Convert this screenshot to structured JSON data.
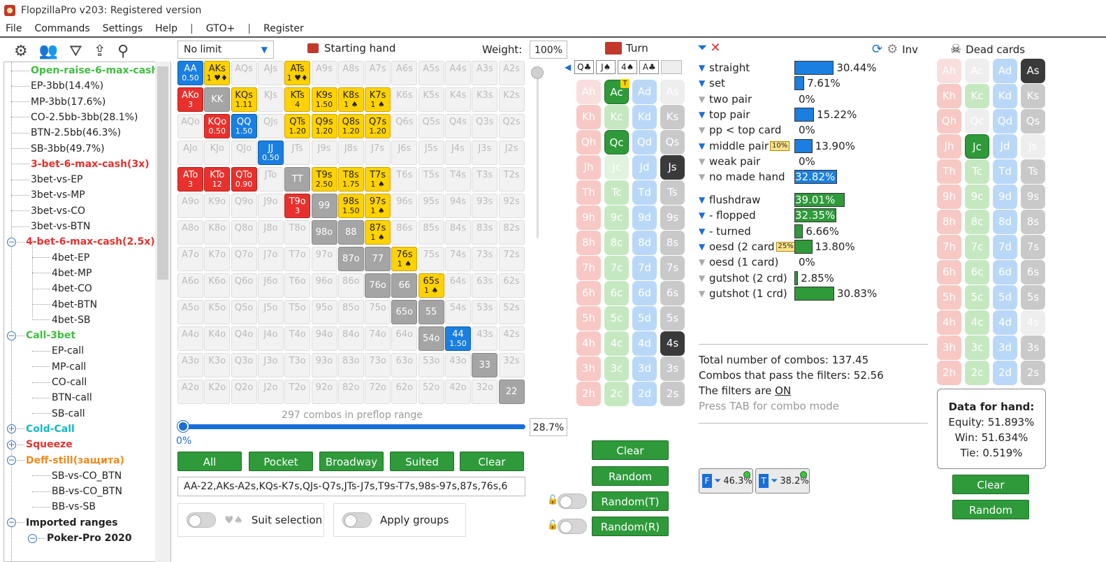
{
  "window": {
    "title": "FlopzillaPro v203: Registered version"
  },
  "menu": [
    "File",
    "Commands",
    "Settings",
    "Help",
    "|",
    "GTO+",
    "|",
    "Register"
  ],
  "tree": {
    "items": [
      {
        "label": "Open-raise-6-max-cash",
        "color": "#3fbf3f",
        "bold": true,
        "level": 1,
        "toggle": ""
      },
      {
        "label": "EP-3bb(14.4%)",
        "color": "#222",
        "bold": false,
        "level": 1,
        "toggle": ""
      },
      {
        "label": "MP-3bb(17.6%)",
        "color": "#222",
        "bold": false,
        "level": 1,
        "toggle": ""
      },
      {
        "label": "CO-2.5bb-3bb(28.1%)",
        "color": "#222",
        "bold": false,
        "level": 1,
        "toggle": ""
      },
      {
        "label": "BTN-2.5bb(46.3%)",
        "color": "#222",
        "bold": false,
        "level": 1,
        "toggle": ""
      },
      {
        "label": "SB-3bb(49.7%)",
        "color": "#222",
        "bold": false,
        "level": 1,
        "toggle": ""
      },
      {
        "label": "3-bet-6-max-cash(3x)",
        "color": "#e8312d",
        "bold": true,
        "level": 1,
        "toggle": ""
      },
      {
        "label": "3bet-vs-EP",
        "color": "#222",
        "bold": false,
        "level": 1,
        "toggle": ""
      },
      {
        "label": "3bet-vs-MP",
        "color": "#222",
        "bold": false,
        "level": 1,
        "toggle": ""
      },
      {
        "label": "3bet-vs-CO",
        "color": "#222",
        "bold": false,
        "level": 1,
        "toggle": ""
      },
      {
        "label": "3bet-vs-BTN",
        "color": "#222",
        "bold": false,
        "level": 1,
        "toggle": ""
      },
      {
        "label": "4-bet-6-max-cash(2.5x)",
        "color": "#e8312d",
        "bold": true,
        "level": 1,
        "toggle": "−"
      },
      {
        "label": "4bet-EP",
        "color": "#222",
        "bold": false,
        "level": 2,
        "toggle": ""
      },
      {
        "label": "4bet-MP",
        "color": "#222",
        "bold": false,
        "level": 2,
        "toggle": ""
      },
      {
        "label": "4bet-CO",
        "color": "#222",
        "bold": false,
        "level": 2,
        "toggle": ""
      },
      {
        "label": "4bet-BTN",
        "color": "#222",
        "bold": false,
        "level": 2,
        "toggle": ""
      },
      {
        "label": "4bet-SB",
        "color": "#222",
        "bold": false,
        "level": 2,
        "toggle": ""
      },
      {
        "label": "Call-3bet",
        "color": "#3fbf3f",
        "bold": true,
        "level": 1,
        "toggle": "−"
      },
      {
        "label": "EP-call",
        "color": "#222",
        "bold": false,
        "level": 2,
        "toggle": ""
      },
      {
        "label": "MP-call",
        "color": "#222",
        "bold": false,
        "level": 2,
        "toggle": ""
      },
      {
        "label": "CO-call",
        "color": "#222",
        "bold": false,
        "level": 2,
        "toggle": ""
      },
      {
        "label": "BTN-call",
        "color": "#222",
        "bold": false,
        "level": 2,
        "toggle": ""
      },
      {
        "label": "SB-call",
        "color": "#222",
        "bold": false,
        "level": 2,
        "toggle": ""
      },
      {
        "label": "Cold-Call",
        "color": "#16b8c8",
        "bold": true,
        "level": 1,
        "toggle": "+"
      },
      {
        "label": "Squeeze",
        "color": "#e8312d",
        "bold": true,
        "level": 1,
        "toggle": "+"
      },
      {
        "label": "Deff-still(защита)",
        "color": "#f08a1c",
        "bold": true,
        "level": 1,
        "toggle": "−"
      },
      {
        "label": "SB-vs-CO_BTN",
        "color": "#222",
        "bold": false,
        "level": 2,
        "toggle": ""
      },
      {
        "label": "BB-vs-CO_BTN",
        "color": "#222",
        "bold": false,
        "level": 2,
        "toggle": ""
      },
      {
        "label": "BB-vs-SB",
        "color": "#222",
        "bold": false,
        "level": 2,
        "toggle": ""
      },
      {
        "label": "Imported ranges",
        "color": "#222",
        "bold": true,
        "level": 1,
        "toggle": "−"
      },
      {
        "label": "Poker-Pro 2020",
        "color": "#222",
        "bold": true,
        "level": 2,
        "toggle": "−"
      }
    ]
  },
  "range": {
    "limit": "No limit",
    "starting_hand_label": "Starting hand",
    "weight_label": "Weight:",
    "weight_value": "100%",
    "combos_text": "297 combos in preflop range",
    "range_pct": "28.7%",
    "slider_min": "0%",
    "buttons": [
      "All",
      "Pocket",
      "Broadway",
      "Suited",
      "Clear"
    ],
    "range_text": "AA-22,AKs-A2s,KQs-K7s,QJs-Q7s,JTs-J7s,T9s-T7s,98s-97s,87s,76s,6",
    "suit_selection": "Suit selection",
    "apply_groups": "Apply groups",
    "cells": [
      [
        "AA|0.50|b",
        "AKs|1 ♥♦|y",
        "AQs",
        "AJs",
        "ATs|1 ♥♦|y",
        "A9s",
        "A8s",
        "A7s",
        "A6s",
        "A5s",
        "A4s",
        "A3s",
        "A2s"
      ],
      [
        "AKo|3|r",
        "KK||g",
        "KQs|1.11|y",
        "KJs",
        "KTs|4|y",
        "K9s|1.50|y",
        "K8s|1 ♠|y",
        "K7s|1 ♠|y",
        "K6s",
        "K5s",
        "K4s",
        "K3s",
        "K2s"
      ],
      [
        "AQo",
        "KQo|0.50|r",
        "QQ|1.50|b",
        "QJs",
        "QTs|1.20|y",
        "Q9s|1.20|y",
        "Q8s|1.20|y",
        "Q7s|1.20|y",
        "Q6s",
        "Q5s",
        "Q4s",
        "Q3s",
        "Q2s"
      ],
      [
        "AJo",
        "KJo",
        "QJo",
        "JJ|0.50|b",
        "JTs",
        "J9s",
        "J8s",
        "J7s",
        "J6s",
        "J5s",
        "J4s",
        "J3s",
        "J2s"
      ],
      [
        "ATo|3|r",
        "KTo|12|r",
        "QTo|0.90|r",
        "JTo",
        "TT||g",
        "T9s|2.50|y",
        "T8s|1.75|y",
        "T7s|1 ♠|y",
        "T6s",
        "T5s",
        "T4s",
        "T3s",
        "T2s"
      ],
      [
        "A9o",
        "K9o",
        "Q9o",
        "J9o",
        "T9o|3|r",
        "99||g",
        "98s|1.50|y",
        "97s|1 ♠|y",
        "96s",
        "95s",
        "94s",
        "93s",
        "92s"
      ],
      [
        "A8o",
        "K8o",
        "Q8o",
        "J8o",
        "T8o",
        "98o||g",
        "88||g",
        "87s|1 ♠|y",
        "86s",
        "85s",
        "84s",
        "83s",
        "82s"
      ],
      [
        "A7o",
        "K7o",
        "Q7o",
        "J7o",
        "T7o",
        "97o",
        "87o||g",
        "77||g",
        "76s|1 ♠|y",
        "75s",
        "74s",
        "73s",
        "72s"
      ],
      [
        "A6o",
        "K6o",
        "Q6o",
        "J6o",
        "T6o",
        "96o",
        "86o",
        "76o||g",
        "66||g",
        "65s|1 ♠|y",
        "64s",
        "63s",
        "62s"
      ],
      [
        "A5o",
        "K5o",
        "Q5o",
        "J5o",
        "T5o",
        "95o",
        "85o",
        "75o",
        "65o||g",
        "55||g",
        "54s|",
        "53s",
        "52s"
      ],
      [
        "A4o",
        "K4o",
        "Q4o",
        "J4o",
        "T4o",
        "94o",
        "84o",
        "74o",
        "64o",
        "54o||g",
        "44|1.50|b",
        "43s",
        "42s"
      ],
      [
        "A3o",
        "K3o",
        "Q3o",
        "J3o",
        "T3o",
        "93o",
        "83o",
        "73o",
        "63o",
        "53o",
        "43o",
        "33||g",
        "32s"
      ],
      [
        "A2o",
        "K2o",
        "Q2o",
        "J2o",
        "T2o",
        "92o",
        "82o",
        "72o",
        "62o",
        "52o",
        "42o",
        "32o",
        "22||g"
      ]
    ]
  },
  "turn": {
    "label": "Turn",
    "board_cards": [
      "Q♣",
      "J♠",
      "4♠",
      "A♣",
      ""
    ],
    "cards": [
      [
        "Ah|hf",
        "Ac|sel|T",
        "Ad|d",
        "As|sf"
      ],
      [
        "Kh|h",
        "Kc|c",
        "Kd|d",
        "Ks|s"
      ],
      [
        "Qh|h",
        "Qc|sel",
        "Qd|d",
        "Qs|s"
      ],
      [
        "Jh|h",
        "Jc|cf",
        "Jd|d",
        "Js|dark"
      ],
      [
        "Th|h",
        "Tc|c",
        "Td|d",
        "Ts|s"
      ],
      [
        "9h|h",
        "9c|c",
        "9d|d",
        "9s|s"
      ],
      [
        "8h|h",
        "8c|c",
        "8d|d",
        "8s|s"
      ],
      [
        "7h|h",
        "7c|c",
        "7d|d",
        "7s|s"
      ],
      [
        "6h|h",
        "6c|c",
        "6d|d",
        "6s|s"
      ],
      [
        "5h|h",
        "5c|c",
        "5d|d",
        "5s|s"
      ],
      [
        "4h|h",
        "4c|c",
        "4d|d",
        "4s|dark"
      ],
      [
        "3h|h",
        "3c|c",
        "3d|d",
        "3s|s"
      ],
      [
        "2h|h",
        "2c|c",
        "2d|d",
        "2s|s"
      ]
    ],
    "buttons": [
      "Clear",
      "Random",
      "Random(T)",
      "Random(R)"
    ]
  },
  "stats": {
    "inv_label": "Inv",
    "rows_made": [
      {
        "label": "straight",
        "pct": 30.44,
        "text": "30.44%",
        "color": "#1a7fe0",
        "on": true,
        "mini": ""
      },
      {
        "label": "set",
        "pct": 7.61,
        "text": "7.61%",
        "color": "#1a7fe0",
        "on": true,
        "mini": ""
      },
      {
        "label": "two pair",
        "pct": 0,
        "text": "0%",
        "color": "#1a7fe0",
        "on": false,
        "mini": ""
      },
      {
        "label": "top pair",
        "pct": 15.22,
        "text": "15.22%",
        "color": "#1a7fe0",
        "on": true,
        "mini": ""
      },
      {
        "label": "pp < top card",
        "pct": 0,
        "text": "0%",
        "color": "#1a7fe0",
        "on": false,
        "mini": ""
      },
      {
        "label": "middle pair",
        "pct": 13.9,
        "text": "13.90%",
        "color": "#1a7fe0",
        "on": true,
        "mini": "10%"
      },
      {
        "label": "weak pair",
        "pct": 0,
        "text": "0%",
        "color": "#1a7fe0",
        "on": false,
        "mini": ""
      },
      {
        "label": "no made hand",
        "pct": 32.82,
        "text": "32.82%",
        "color": "#1a7fe0",
        "on": false,
        "mini": ""
      }
    ],
    "rows_draw": [
      {
        "label": "flushdraw",
        "pct": 39.01,
        "text": "39.01%",
        "color": "#2e9a3a",
        "on": true,
        "mini": ""
      },
      {
        "label": "- flopped",
        "pct": 32.35,
        "text": "32.35%",
        "color": "#2e9a3a",
        "on": true,
        "mini": ""
      },
      {
        "label": "- turned",
        "pct": 6.66,
        "text": "6.66%",
        "color": "#2e9a3a",
        "on": true,
        "mini": ""
      },
      {
        "label": "oesd (2 card",
        "pct": 13.8,
        "text": "13.80%",
        "color": "#2e9a3a",
        "on": true,
        "mini": "25%"
      },
      {
        "label": "oesd (1 card)",
        "pct": 0,
        "text": "0%",
        "color": "#2e9a3a",
        "on": false,
        "mini": ""
      },
      {
        "label": "gutshot (2 crd)",
        "pct": 2.85,
        "text": "2.85%",
        "color": "#2e9a3a",
        "on": false,
        "mini": ""
      },
      {
        "label": "gutshot (1 crd)",
        "pct": 30.83,
        "text": "30.83%",
        "color": "#2e9a3a",
        "on": false,
        "mini": ""
      }
    ],
    "total": "Total number of combos: 137.45",
    "pass": "Combos that pass the filters: 52.56",
    "filters_prefix": "The filters are ",
    "filters_state": "ON",
    "hint": "Press TAB for combo mode",
    "badge_f": {
      "letter": "F",
      "value": "46.3%"
    },
    "badge_t": {
      "letter": "T",
      "value": "38.2%"
    }
  },
  "dead": {
    "label": "Dead cards",
    "cards": [
      [
        "Ah|hf",
        "Ac|sf",
        "Ad|d",
        "As|dark"
      ],
      [
        "Kh|h",
        "Kc|c",
        "Kd|d",
        "Ks|s"
      ],
      [
        "Qh|h",
        "Qc|sf",
        "Qd|d",
        "Qs|s"
      ],
      [
        "Jh|h",
        "Jc|sel",
        "Jd|d",
        "Js|sf"
      ],
      [
        "Th|h",
        "Tc|c",
        "Td|d",
        "Ts|s"
      ],
      [
        "9h|h",
        "9c|c",
        "9d|d",
        "9s|s"
      ],
      [
        "8h|h",
        "8c|c",
        "8d|d",
        "8s|s"
      ],
      [
        "7h|h",
        "7c|c",
        "7d|d",
        "7s|s"
      ],
      [
        "6h|h",
        "6c|c",
        "6d|d",
        "6s|s"
      ],
      [
        "5h|h",
        "5c|c",
        "5d|d",
        "5s|s"
      ],
      [
        "4h|h",
        "4c|c",
        "4d|d",
        "4s|sf"
      ],
      [
        "3h|h",
        "3c|c",
        "3d|d",
        "3s|s"
      ],
      [
        "2h|h",
        "2c|c",
        "2d|d",
        "2s|s"
      ]
    ],
    "data_title": "Data for hand:",
    "equity": "Equity: 51.893%",
    "win": "Win: 51.634%",
    "tie": "Tie: 0.519%",
    "buttons": [
      "Clear",
      "Random"
    ]
  }
}
